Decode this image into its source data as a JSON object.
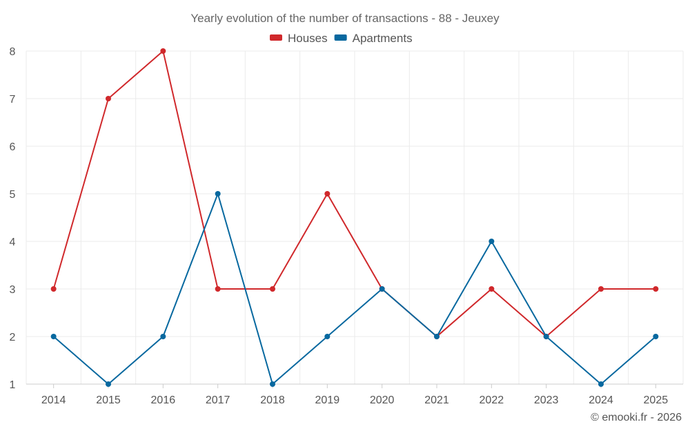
{
  "chart_data": {
    "type": "line",
    "title": "Yearly evolution of the number of transactions - 88 - Jeuxey",
    "categories": [
      "2014",
      "2015",
      "2016",
      "2017",
      "2018",
      "2019",
      "2020",
      "2021",
      "2022",
      "2023",
      "2024",
      "2025"
    ],
    "series": [
      {
        "name": "Houses",
        "color": "#d0282b",
        "values": [
          3,
          7,
          8,
          3,
          3,
          5,
          3,
          2,
          3,
          2,
          3,
          3
        ]
      },
      {
        "name": "Apartments",
        "color": "#07689f",
        "values": [
          2,
          1,
          2,
          5,
          1,
          2,
          3,
          2,
          4,
          2,
          1,
          2
        ]
      }
    ],
    "ylim": [
      1,
      8
    ],
    "yticks": [
      "1",
      "2",
      "3",
      "4",
      "5",
      "6",
      "7",
      "8"
    ],
    "grid": true,
    "legend": "top-center"
  },
  "credit": "© emooki.fr - 2026"
}
